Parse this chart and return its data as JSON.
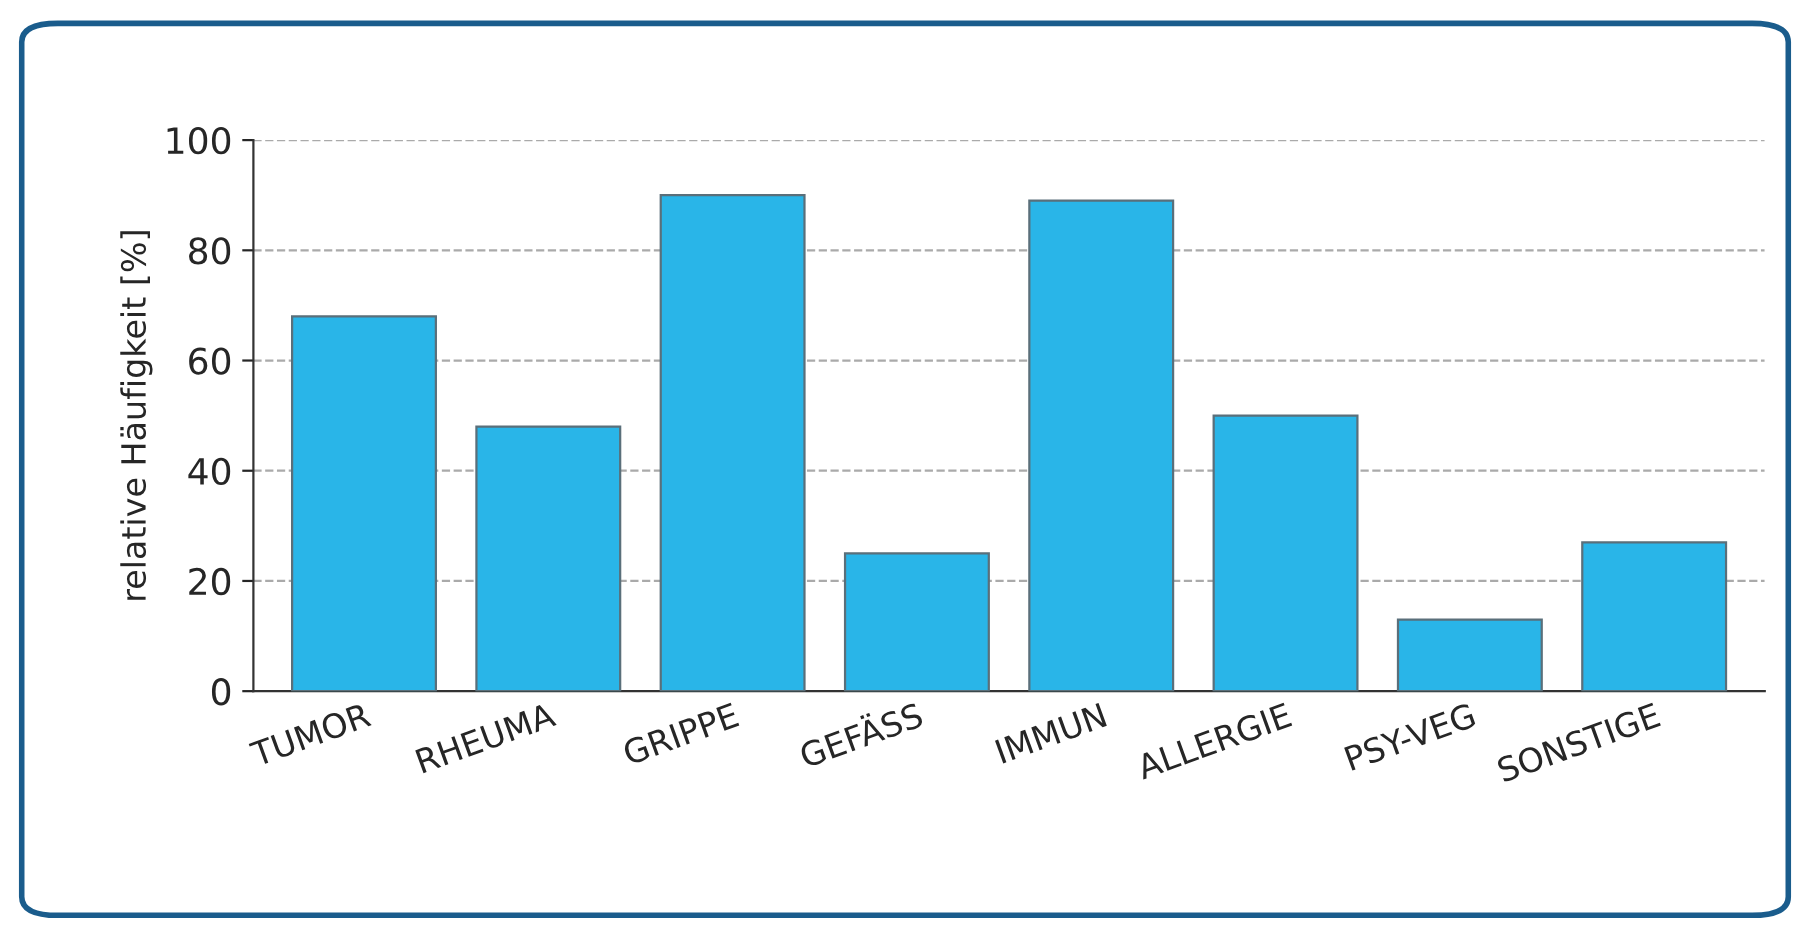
{
  "chart_data": {
    "type": "bar",
    "ylabel": "relative Häufigkeit [%]",
    "categories": [
      "TUMOR",
      "RHEUMA",
      "GRIPPE",
      "GEFÄSS",
      "IMMUN",
      "ALLERGIE",
      "PSY-VEG",
      "SONSTIGE"
    ],
    "values": [
      68,
      48,
      90,
      25,
      89,
      50,
      13,
      27
    ],
    "color": "#29b5e8",
    "ylim": [
      0,
      100
    ],
    "yticks": [
      0,
      20,
      40,
      60,
      80,
      100
    ],
    "grid": "y"
  }
}
